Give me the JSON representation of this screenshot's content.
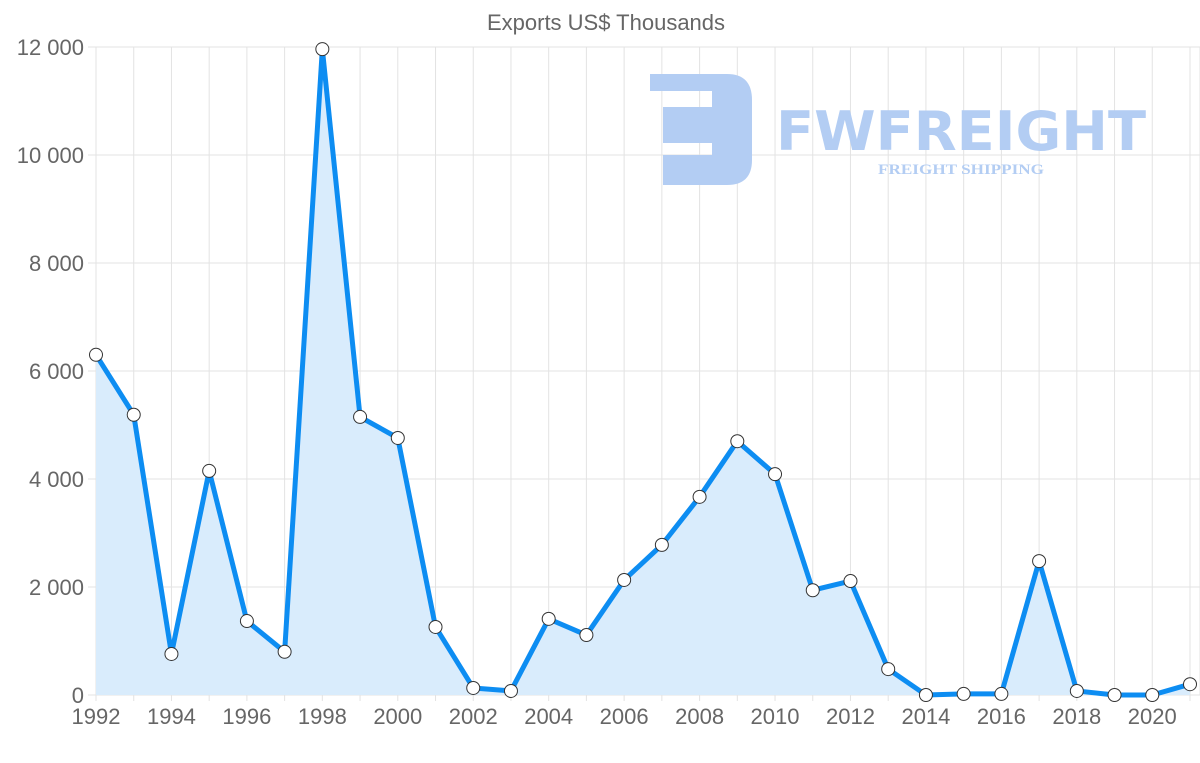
{
  "chart_data": {
    "type": "area",
    "title": "Exports US$ Thousands",
    "xlabel": "",
    "ylabel": "",
    "x": [
      1992,
      1993,
      1994,
      1995,
      1996,
      1997,
      1998,
      1999,
      2000,
      2001,
      2002,
      2003,
      2004,
      2005,
      2006,
      2007,
      2008,
      2009,
      2010,
      2011,
      2012,
      2013,
      2014,
      2015,
      2016,
      2017,
      2018,
      2019,
      2020,
      2021
    ],
    "series": [
      {
        "name": "Exports US$ Thousands",
        "values": [
          6300,
          5190,
          760,
          4150,
          1370,
          800,
          11960,
          5150,
          4760,
          1260,
          130,
          75,
          1410,
          1110,
          2130,
          2780,
          3670,
          4700,
          4090,
          1940,
          2110,
          480,
          0,
          20,
          20,
          2480,
          75,
          0,
          0,
          200
        ]
      }
    ],
    "xticks": [
      "1992",
      "1994",
      "1996",
      "1998",
      "2000",
      "2002",
      "2004",
      "2006",
      "2008",
      "2010",
      "2012",
      "2014",
      "2016",
      "2018",
      "2020"
    ],
    "yticks": [
      "0",
      "2 000",
      "4 000",
      "6 000",
      "8 000",
      "10 000",
      "12 000"
    ],
    "ylim": [
      0,
      12000
    ],
    "xlim": [
      1992,
      2021
    ],
    "grid": true,
    "legend": "none",
    "colors": {
      "line": "#0d8df2",
      "fill": "#d9ecfc",
      "grid": "#e3e3e3",
      "point_fill": "#ffffff",
      "point_stroke": "#333333"
    }
  },
  "watermark": {
    "brand": "FWFREIGHT",
    "tagline": "FREIGHT SHIPPING"
  }
}
